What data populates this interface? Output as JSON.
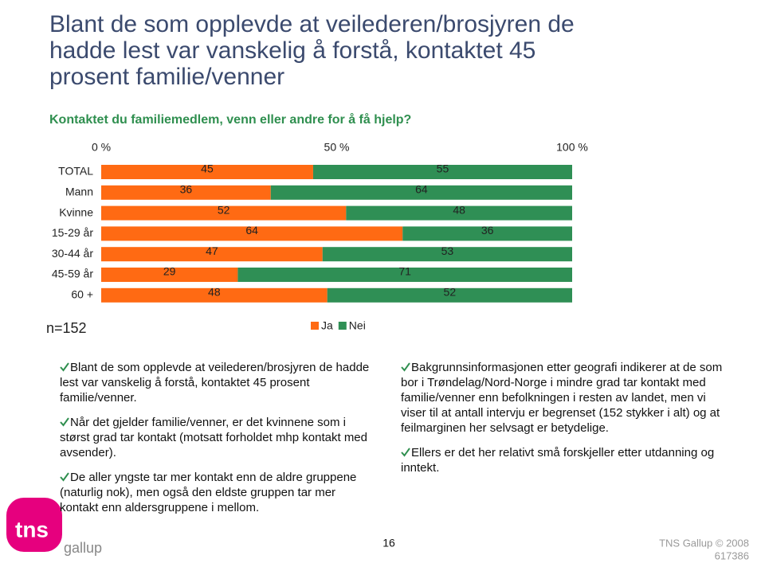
{
  "header": {
    "title_lines": [
      "Blant de som opplevde at veilederen/brosjyren de",
      "hadde lest var vanskelig å forstå, kontaktet 45",
      "prosent familie/venner"
    ],
    "subtitle": "Kontaktet du familiemedlem, venn eller andre for å få hjelp?"
  },
  "chart_data": {
    "type": "stacked-bar-horizontal",
    "categories": [
      "TOTAL",
      "Mann",
      "Kvinne",
      "15-29 år",
      "30-44 år",
      "45-59 år",
      "60 +"
    ],
    "series": [
      {
        "name": "Ja",
        "color": "#ff6a13",
        "values": [
          45,
          36,
          52,
          64,
          47,
          29,
          48
        ]
      },
      {
        "name": "Nei",
        "color": "#2f8f55",
        "values": [
          55,
          64,
          48,
          36,
          53,
          71,
          52
        ]
      }
    ],
    "xlim": [
      0,
      100
    ],
    "xticks": [
      {
        "value": 0,
        "label": "0 %"
      },
      {
        "value": 50,
        "label": "50 %"
      },
      {
        "value": 100,
        "label": "100 %"
      }
    ],
    "legend": "bottom",
    "annotation": "n=152"
  },
  "bullets_left": [
    "Blant de som opplevde at veilederen/brosjyren de hadde lest var vanskelig å forstå, kontaktet 45 prosent familie/venner.",
    "Når det gjelder familie/venner, er det kvinnene som i størst grad tar kontakt (motsatt forholdet mhp kontakt med avsender).",
    "De aller yngste tar mer kontakt enn de aldre gruppene (naturlig nok), men også den eldste gruppen tar mer kontakt enn aldersgruppene i mellom."
  ],
  "bullets_right": [
    "Bakgrunnsinformasjonen etter geografi indikerer at de som bor i Trøndelag/Nord-Norge i mindre grad tar kontakt med familie/venner enn befolkningen i resten av landet, men vi viser til at antall intervju er begrenset (152 stykker i alt) og at feilmarginen her selvsagt er betydelige.",
    "Ellers er det her relativt små forskjeller etter utdanning og inntekt."
  ],
  "footer": {
    "logo": "tns",
    "logo_sub": "gallup",
    "page": "16",
    "copyright": "TNS Gallup © 2008",
    "code": "617386"
  }
}
